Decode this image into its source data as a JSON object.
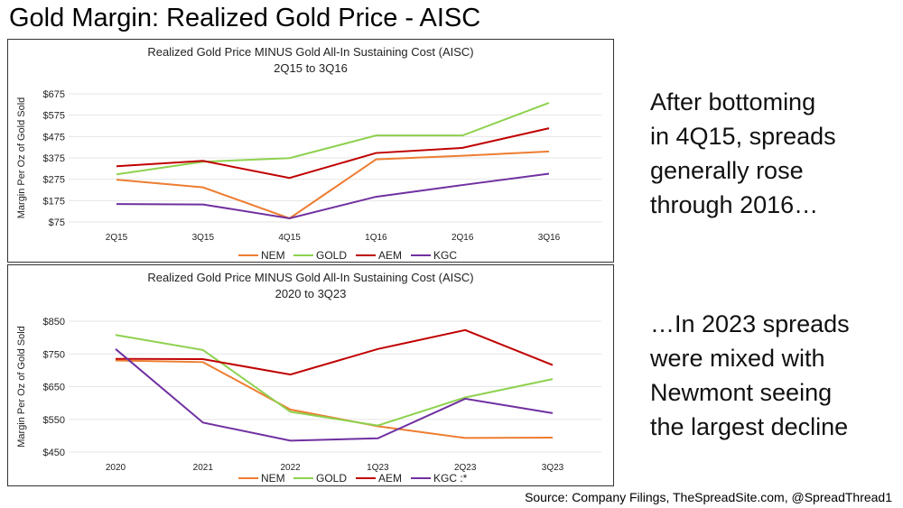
{
  "slide": {
    "title": "Gold Margin: Realized Gold Price - AISC",
    "commentary_top": [
      "After bottoming",
      "in 4Q15, spreads",
      "generally rose",
      "through 2016…"
    ],
    "commentary_bottom": [
      "…In 2023 spreads",
      "were mixed with",
      "Newmont seeing",
      "the largest decline"
    ],
    "source": "Source: Company Filings, TheSpreadSite.com, @SpreadThread1"
  },
  "colors": {
    "NEM": "#ED7D31",
    "GOLD": "#8ED14F",
    "AEM": "#C00000",
    "KGC": "#7030A0",
    "grid": "#E6E6E6"
  },
  "chart_data": [
    {
      "type": "line",
      "title": "Realized Gold Price MINUS Gold All-In Sustaining Cost (AISC)",
      "subtitle": "2Q15 to 3Q16",
      "ylabel": "Margin Per Oz of Gold Sold",
      "categories": [
        "2Q15",
        "3Q15",
        "4Q15",
        "1Q16",
        "2Q16",
        "3Q16"
      ],
      "yticks": [
        "$75",
        "$175",
        "$275",
        "$375",
        "$475",
        "$575",
        "$675"
      ],
      "ylim": [
        75,
        675
      ],
      "grid": true,
      "legend_position": "bottom",
      "series": [
        {
          "name": "NEM",
          "values": [
            273,
            237,
            92,
            368,
            385,
            405
          ]
        },
        {
          "name": "GOLD",
          "values": [
            298,
            357,
            374,
            480,
            480,
            633
          ]
        },
        {
          "name": "AEM",
          "values": [
            336,
            361,
            281,
            398,
            422,
            514
          ]
        },
        {
          "name": "KGC",
          "values": [
            159,
            157,
            92,
            193,
            248,
            301
          ]
        }
      ]
    },
    {
      "type": "line",
      "title": "Realized Gold Price MINUS Gold All-In Sustaining Cost (AISC)",
      "subtitle": "2020 to 3Q23",
      "ylabel": "Margin Per Oz of Gold Sold",
      "categories": [
        "2020",
        "2021",
        "2022",
        "1Q23",
        "2Q23",
        "3Q23"
      ],
      "yticks": [
        "$450",
        "$550",
        "$650",
        "$750",
        "$850"
      ],
      "ylim": [
        450,
        850
      ],
      "grid": true,
      "legend_position": "bottom",
      "series": [
        {
          "name": "NEM",
          "values": [
            730,
            725,
            580,
            529,
            493,
            494
          ]
        },
        {
          "name": "GOLD",
          "values": [
            808,
            762,
            573,
            531,
            617,
            673
          ]
        },
        {
          "name": "AEM",
          "values": [
            735,
            734,
            687,
            765,
            823,
            716
          ]
        },
        {
          "name": "KGC",
          "legend_label": "KGC :*",
          "values": [
            765,
            540,
            485,
            492,
            613,
            569
          ]
        }
      ]
    }
  ]
}
